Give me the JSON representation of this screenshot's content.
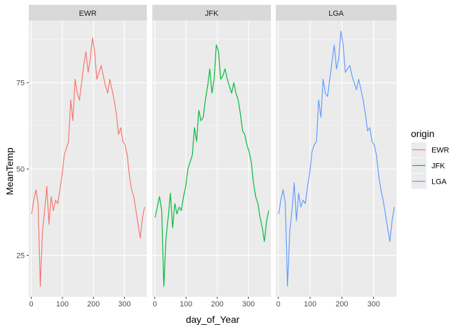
{
  "chart_data": {
    "type": "line",
    "facet_by": "origin",
    "facets": [
      "EWR",
      "JFK",
      "LGA"
    ],
    "xlabel": "day_of_Year",
    "ylabel": "MeanTemp",
    "xlim": [
      -8,
      372
    ],
    "ylim": [
      13,
      93
    ],
    "x_ticks": [
      0,
      100,
      200,
      300
    ],
    "x_tick_labels": [
      "0",
      "100",
      "200",
      "300"
    ],
    "y_ticks": [
      25,
      50,
      75
    ],
    "y_tick_labels": [
      "25",
      "50",
      "75"
    ],
    "grid": true,
    "legend": {
      "title": "origin",
      "position": "right",
      "entries": [
        "EWR",
        "JFK",
        "LGA"
      ]
    },
    "x": [
      1,
      8,
      15,
      22,
      29,
      36,
      43,
      50,
      57,
      64,
      71,
      78,
      85,
      92,
      99,
      106,
      113,
      120,
      127,
      134,
      141,
      148,
      155,
      162,
      169,
      176,
      183,
      190,
      197,
      204,
      211,
      218,
      225,
      232,
      239,
      246,
      253,
      260,
      267,
      274,
      281,
      288,
      295,
      302,
      309,
      316,
      323,
      330,
      337,
      344,
      351,
      358,
      365
    ],
    "series": [
      {
        "name": "EWR",
        "color": "#F8766D",
        "values": [
          37,
          41,
          44,
          40,
          16,
          32,
          38,
          45,
          34,
          42,
          38,
          41,
          40,
          44,
          48,
          54,
          56,
          58,
          70,
          64,
          76,
          72,
          70,
          75,
          80,
          84,
          78,
          82,
          88,
          84,
          76,
          78,
          80,
          77,
          74,
          72,
          76,
          73,
          70,
          66,
          60,
          62,
          58,
          57,
          54,
          48,
          44,
          42,
          38,
          34,
          30,
          36,
          39
        ]
      },
      {
        "name": "JFK",
        "color": "#00BA38",
        "values": [
          36,
          39,
          42,
          38,
          16,
          30,
          36,
          43,
          33,
          40,
          37,
          39,
          38,
          42,
          45,
          50,
          52,
          54,
          62,
          58,
          67,
          64,
          65,
          70,
          74,
          79,
          72,
          76,
          86,
          84,
          76,
          77,
          79,
          76,
          74,
          72,
          75,
          72,
          70,
          66,
          61,
          60,
          57,
          55,
          52,
          46,
          42,
          40,
          36,
          33,
          29,
          35,
          38
        ]
      },
      {
        "name": "LGA",
        "color": "#619CFF",
        "values": [
          37,
          41,
          44,
          40,
          16,
          32,
          38,
          46,
          35,
          43,
          39,
          41,
          40,
          45,
          49,
          55,
          57,
          58,
          70,
          65,
          76,
          72,
          71,
          76,
          81,
          86,
          79,
          82,
          90,
          86,
          78,
          79,
          80,
          77,
          75,
          73,
          76,
          73,
          70,
          66,
          61,
          62,
          58,
          57,
          54,
          48,
          44,
          41,
          37,
          33,
          29,
          35,
          39
        ]
      }
    ]
  }
}
